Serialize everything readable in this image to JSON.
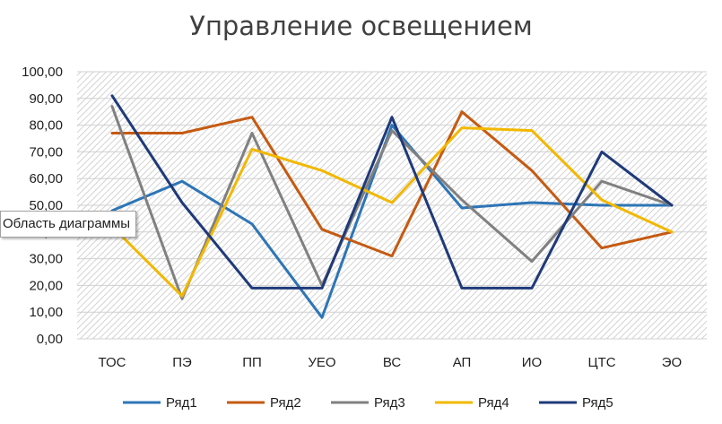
{
  "chart_data": {
    "type": "line",
    "title": "Управление освещением",
    "categories": [
      "ТОС",
      "ПЭ",
      "ПП",
      "УЕО",
      "ВС",
      "АП",
      "ИО",
      "ЦТС",
      "ЭО"
    ],
    "ylim": [
      0,
      100
    ],
    "yticks": [
      "0,00",
      "10,00",
      "20,00",
      "30,00",
      "40,00",
      "50,00",
      "60,00",
      "70,00",
      "80,00",
      "90,00",
      "100,00"
    ],
    "grid": true,
    "legend_position": "bottom",
    "series": [
      {
        "name": "Ряд1",
        "color": "#2e75b6",
        "values": [
          48,
          59,
          43,
          8,
          80,
          49,
          51,
          50,
          50
        ]
      },
      {
        "name": "Ряд2",
        "color": "#c55a11",
        "values": [
          77,
          77,
          83,
          41,
          31,
          85,
          63,
          34,
          40
        ]
      },
      {
        "name": "Ряд3",
        "color": "#808080",
        "values": [
          87,
          15,
          77,
          20,
          78,
          52,
          29,
          59,
          50
        ]
      },
      {
        "name": "Ряд4",
        "color": "#f2b800",
        "values": [
          42,
          16,
          71,
          63,
          51,
          79,
          78,
          52,
          40
        ]
      },
      {
        "name": "Ряд5",
        "color": "#1f3a7a",
        "values": [
          91,
          51,
          19,
          19,
          83,
          19,
          19,
          70,
          50
        ]
      }
    ]
  },
  "tooltip": {
    "text": "Область диаграммы"
  }
}
